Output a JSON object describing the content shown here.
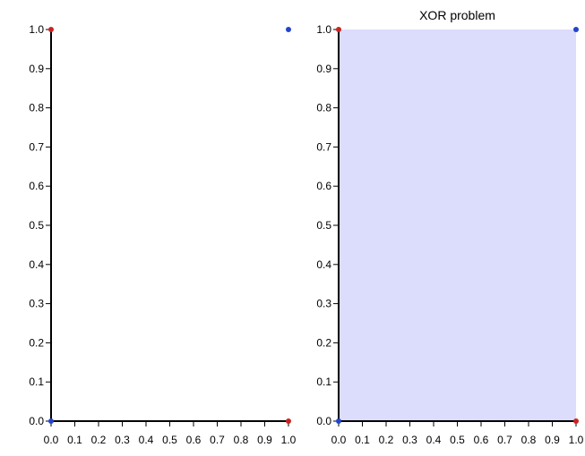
{
  "chart_data": [
    {
      "type": "scatter",
      "title": "",
      "xlabel": "",
      "ylabel": "",
      "xlim": [
        0,
        1
      ],
      "ylim": [
        0,
        1
      ],
      "xticks": [
        "0.0",
        "0.1",
        "0.2",
        "0.3",
        "0.4",
        "0.5",
        "0.6",
        "0.7",
        "0.8",
        "0.9",
        "1.0"
      ],
      "yticks": [
        "0.0",
        "0.1",
        "0.2",
        "0.3",
        "0.4",
        "0.5",
        "0.6",
        "0.7",
        "0.8",
        "0.9",
        "1.0"
      ],
      "background": "#ffffff",
      "series": [
        {
          "color": "#cc2222",
          "points": [
            [
              0,
              1
            ],
            [
              1,
              0
            ]
          ]
        },
        {
          "color": "#2244cc",
          "points": [
            [
              0,
              0
            ],
            [
              1,
              1
            ]
          ]
        }
      ]
    },
    {
      "type": "scatter",
      "title": "XOR problem",
      "xlabel": "",
      "ylabel": "",
      "xlim": [
        0,
        1
      ],
      "ylim": [
        0,
        1
      ],
      "xticks": [
        "0.0",
        "0.1",
        "0.2",
        "0.3",
        "0.4",
        "0.5",
        "0.6",
        "0.7",
        "0.8",
        "0.9",
        "1.0"
      ],
      "yticks": [
        "0.0",
        "0.1",
        "0.2",
        "0.3",
        "0.4",
        "0.5",
        "0.6",
        "0.7",
        "0.8",
        "0.9",
        "1.0"
      ],
      "background": "#dcdcfc",
      "series": [
        {
          "color": "#cc2222",
          "points": [
            [
              0,
              1
            ],
            [
              1,
              0
            ]
          ]
        },
        {
          "color": "#2244cc",
          "points": [
            [
              0,
              0
            ],
            [
              1,
              1
            ]
          ]
        }
      ]
    }
  ]
}
